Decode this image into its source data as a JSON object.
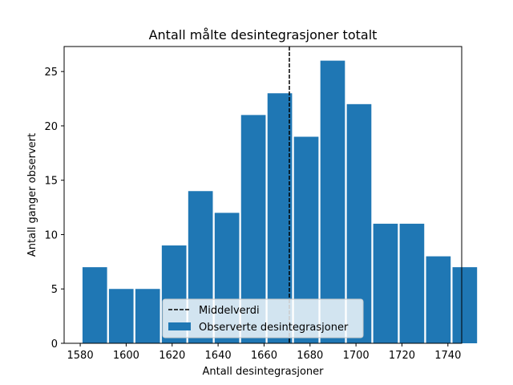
{
  "chart_data": {
    "type": "bar",
    "title": "Antall målte desintegrasjoner totalt",
    "xlabel": "Antall desintegrasjoner",
    "ylabel": "Antall ganger observert",
    "xlim": [
      1573,
      1746
    ],
    "ylim": [
      0,
      27.3
    ],
    "xticks": [
      1580,
      1600,
      1620,
      1640,
      1660,
      1680,
      1700,
      1720,
      1740
    ],
    "yticks": [
      0,
      5,
      10,
      15,
      20,
      25
    ],
    "bin_start": 1581,
    "bin_width": 11.5,
    "bar_width_fraction": 0.93,
    "series": [
      {
        "name": "Observerte desintegrasjoner",
        "color": "#1f77b4",
        "values": [
          7,
          5,
          5,
          9,
          14,
          12,
          21,
          23,
          19,
          26,
          22,
          11,
          11,
          8,
          7
        ]
      }
    ],
    "mean_line": {
      "name": "Middelverdi",
      "x": 1671,
      "color": "#000000",
      "style": "dashed"
    },
    "legend": {
      "placement": "lower-center",
      "entries": [
        "Middelverdi",
        "Observerte desintegrasjoner"
      ]
    },
    "grid": false
  }
}
